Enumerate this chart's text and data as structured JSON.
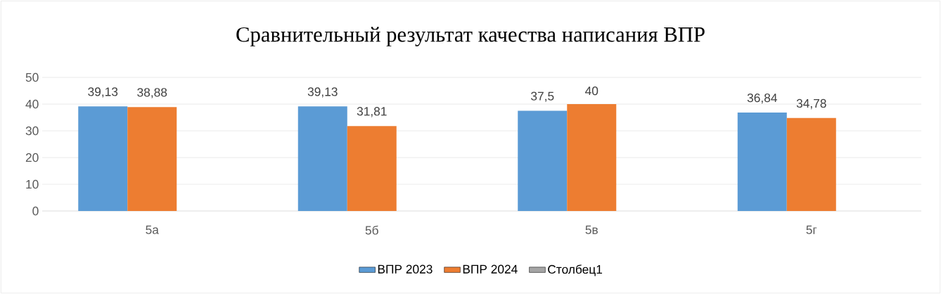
{
  "chart_data": {
    "type": "bar",
    "title": "Сравнительный результат качества написания ВПР",
    "categories": [
      "5а",
      "5б",
      "5в",
      "5г"
    ],
    "series": [
      {
        "name": "ВПР 2023",
        "color": "#5b9bd5",
        "values": [
          39.13,
          39.13,
          37.5,
          36.84
        ],
        "value_labels": [
          "39,13",
          "39,13",
          "37,5",
          "36,84"
        ]
      },
      {
        "name": "ВПР 2024",
        "color": "#ed7d31",
        "values": [
          38.88,
          31.81,
          40,
          34.78
        ],
        "value_labels": [
          "38,88",
          "31,81",
          "40",
          "34,78"
        ]
      },
      {
        "name": "Столбец1",
        "color": "#a5a5a5",
        "values": [
          null,
          null,
          null,
          null
        ]
      }
    ],
    "ylim": [
      0,
      50
    ],
    "yticks": [
      0,
      10,
      20,
      30,
      40,
      50
    ],
    "grid": "y",
    "legend": "bottom"
  }
}
